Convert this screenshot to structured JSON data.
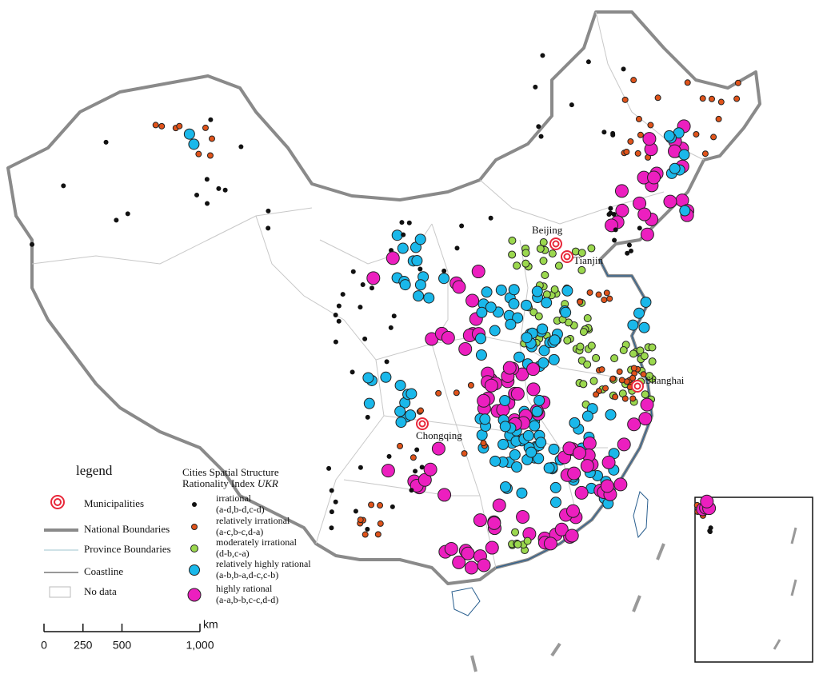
{
  "municipalities": [
    {
      "label": "Beijing"
    },
    {
      "label": "Tianjin"
    },
    {
      "label": "Shanghai"
    },
    {
      "label": "Chongqing"
    }
  ],
  "legend": {
    "title": "legend",
    "items": [
      "Municipalities",
      "National Boundaries",
      "Province Boundaries",
      "Coastline",
      "No data"
    ]
  },
  "index_legend": {
    "title_line1": "Cities Spatial Structure",
    "title_line2": "Rationality Index ",
    "title_symbol": "UKR",
    "classes": [
      {
        "name": "irrational",
        "codes": "(a-d,b-d,c-d)",
        "color": "#111111"
      },
      {
        "name": "relatively irrational",
        "codes": "(a-c,b-c,d-a)",
        "color": "#e0531a"
      },
      {
        "name": "moderately irrational",
        "codes": "(d-b,c-a)",
        "color": "#9bd84e"
      },
      {
        "name": "relatively highly rational",
        "codes": "(a-b,b-a,d-c,c-b)",
        "color": "#1ab8ea"
      },
      {
        "name": "highly rational",
        "codes": "(a-a,b-b,c-c,d-d)",
        "color": "#ec1fbf"
      }
    ]
  },
  "scale_bar": {
    "unit": "km",
    "ticks": [
      0,
      250,
      500,
      {
        "value": 1000,
        "label": "1,000"
      }
    ]
  }
}
